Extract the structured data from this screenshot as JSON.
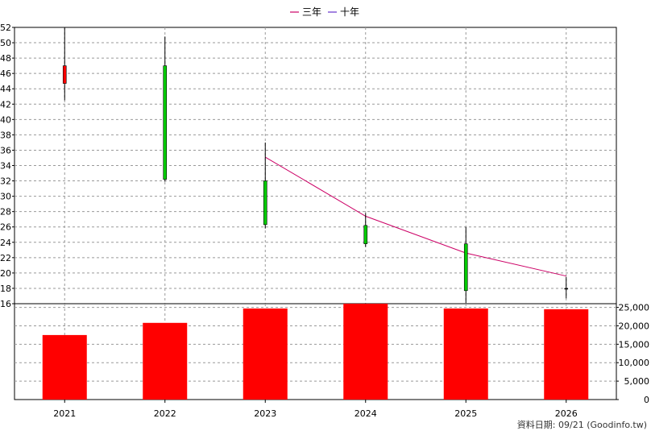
{
  "chart_data": {
    "type": "candlestick+line+bar",
    "legend": [
      {
        "name": "三年",
        "color": "#cc0066"
      },
      {
        "name": "十年",
        "color": "#6633cc"
      }
    ],
    "categories": [
      "2021",
      "2022",
      "2023",
      "2024",
      "2025",
      "2026"
    ],
    "price_axis": {
      "ylim": [
        16,
        52
      ],
      "ticks": [
        16,
        18,
        20,
        22,
        24,
        26,
        28,
        30,
        32,
        34,
        36,
        38,
        40,
        42,
        44,
        46,
        48,
        50,
        52
      ]
    },
    "candles": [
      {
        "x": "2021",
        "open": 44.7,
        "close": 47.0,
        "high": 52.0,
        "low": 42.5,
        "color": "#ff0000"
      },
      {
        "x": "2022",
        "open": 47.0,
        "close": 32.2,
        "high": 50.8,
        "low": 31.9,
        "color": "#00cc00"
      },
      {
        "x": "2023",
        "open": 32.0,
        "close": 26.3,
        "high": 37.0,
        "low": 25.8,
        "color": "#00cc00"
      },
      {
        "x": "2024",
        "open": 26.2,
        "close": 23.8,
        "high": 27.8,
        "low": 23.4,
        "color": "#00cc00"
      },
      {
        "x": "2025",
        "open": 23.8,
        "close": 17.7,
        "high": 26.0,
        "low": 16.1,
        "color": "#00cc00"
      },
      {
        "x": "2026",
        "open": 18.0,
        "close": 18.0,
        "high": 19.5,
        "low": 16.7,
        "color": "#000000"
      }
    ],
    "line_series": [
      {
        "name": "三年",
        "color": "#cc0066",
        "x": [
          "2023",
          "2024",
          "2025",
          "2026"
        ],
        "values": [
          35.1,
          27.4,
          22.6,
          19.6
        ]
      }
    ],
    "volume_axis": {
      "ylim": [
        0,
        26000
      ],
      "ticks": [
        0,
        5000,
        10000,
        15000,
        20000,
        25000
      ],
      "tick_labels": [
        "0",
        "5,000",
        "10,000",
        "15,000",
        "20,000",
        "25,000"
      ]
    },
    "volume": {
      "color": "#ff0000",
      "values": [
        17500,
        20800,
        24700,
        26000,
        24700,
        24500
      ]
    },
    "source_label": "資料日期: 09/21  (Goodinfo.tw)",
    "grid": true
  }
}
